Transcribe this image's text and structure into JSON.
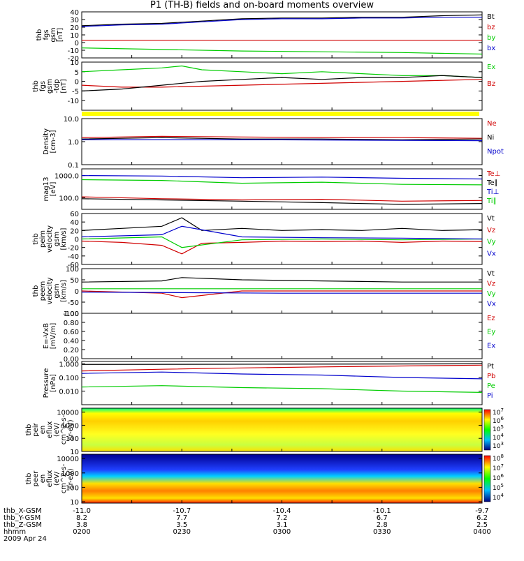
{
  "title": "P1 (TH-B) fields and on-board moments overview",
  "colors": {
    "black": "#000000",
    "red": "#d00000",
    "green": "#00cc00",
    "blue": "#0000cc",
    "yellow": "#ffff00"
  },
  "chart_data": [
    {
      "type": "line",
      "ylabel": [
        "thb",
        "fgs",
        "gsm",
        "[nT]"
      ],
      "ylim": [
        -20,
        40
      ],
      "yticks": [
        -20,
        -10,
        0,
        10,
        20,
        30,
        40
      ],
      "series": [
        {
          "name": "Bt",
          "color": "#000000",
          "x": [
            0,
            0.1,
            0.2,
            0.3,
            0.4,
            0.5,
            0.6,
            0.7,
            0.8,
            0.9,
            1.0
          ],
          "values": [
            22,
            24,
            25,
            28,
            31,
            32,
            32,
            33,
            33,
            35,
            36
          ]
        },
        {
          "name": "bz",
          "color": "#d00000",
          "x": [
            0,
            0.5,
            1.0
          ],
          "values": [
            3,
            3,
            3
          ]
        },
        {
          "name": "by",
          "color": "#00cc00",
          "x": [
            0,
            0.2,
            0.4,
            0.6,
            0.8,
            1.0
          ],
          "values": [
            -7,
            -9,
            -11,
            -12,
            -13,
            -15
          ]
        },
        {
          "name": "bx",
          "color": "#0000cc",
          "x": [
            0,
            0.1,
            0.2,
            0.3,
            0.4,
            0.5,
            0.6,
            0.7,
            0.8,
            0.9,
            1.0
          ],
          "values": [
            21,
            23,
            24,
            27,
            30,
            31,
            31,
            32,
            32,
            33,
            33
          ]
        }
      ]
    },
    {
      "type": "line",
      "ylabel": [
        "thb",
        "fgs",
        "gsm",
        "-tdp",
        "[nT]"
      ],
      "ylim": [
        -15,
        10
      ],
      "yticks": [
        -10,
        -5,
        0,
        5,
        10
      ],
      "series": [
        {
          "name": "Ex",
          "color": "#00cc00",
          "x": [
            0,
            0.1,
            0.2,
            0.25,
            0.3,
            0.4,
            0.5,
            0.6,
            0.7,
            0.8,
            0.9,
            1.0
          ],
          "values": [
            5,
            6,
            7,
            8,
            6,
            5,
            4,
            5,
            4,
            3,
            3,
            2
          ]
        },
        {
          "name": "Bz",
          "color": "#d00000",
          "x": [
            0,
            0.1,
            0.2,
            0.4,
            0.6,
            0.8,
            1.0
          ],
          "values": [
            -2,
            -3,
            -3,
            -2,
            -1,
            0,
            1
          ]
        },
        {
          "name": "",
          "color": "#000000",
          "x": [
            0,
            0.1,
            0.2,
            0.3,
            0.4,
            0.5,
            0.6,
            0.7,
            0.8,
            0.9,
            1.0
          ],
          "values": [
            -5,
            -4,
            -2,
            0,
            1,
            2,
            1,
            2,
            2,
            3,
            2
          ]
        }
      ]
    },
    {
      "type": "line",
      "ylabel": [
        "Density",
        "[cm-3]"
      ],
      "yscale": "log",
      "ylim": [
        0.1,
        10
      ],
      "yticks": [
        0.1,
        1.0,
        10.0
      ],
      "series": [
        {
          "name": "Ne",
          "color": "#d00000",
          "x": [
            0,
            0.2,
            0.4,
            0.6,
            0.8,
            1.0
          ],
          "values": [
            1.5,
            1.7,
            1.6,
            1.5,
            1.5,
            1.4
          ]
        },
        {
          "name": "Ni",
          "color": "#000000",
          "x": [
            0,
            0.2,
            0.4,
            0.6,
            0.8,
            1.0
          ],
          "values": [
            1.3,
            1.5,
            1.3,
            1.3,
            1.2,
            1.3
          ]
        },
        {
          "name": "Npot",
          "color": "#0000cc",
          "x": [
            0,
            0.5,
            1.0
          ],
          "values": [
            1.2,
            1.2,
            1.1
          ]
        }
      ]
    },
    {
      "type": "line",
      "ylabel": [
        "mag13",
        "[eV]"
      ],
      "yscale": "log",
      "ylim": [
        30,
        2000
      ],
      "yticks": [
        100,
        1000
      ],
      "series": [
        {
          "name": "Te⊥",
          "color": "#d00000",
          "x": [
            0,
            0.2,
            0.4,
            0.6,
            0.8,
            1.0
          ],
          "values": [
            110,
            90,
            80,
            85,
            70,
            75
          ]
        },
        {
          "name": "Te∥",
          "color": "#000000",
          "x": [
            0,
            0.2,
            0.4,
            0.6,
            0.8,
            1.0
          ],
          "values": [
            90,
            80,
            70,
            60,
            50,
            55
          ]
        },
        {
          "name": "Ti⊥",
          "color": "#0000cc",
          "x": [
            0,
            0.2,
            0.4,
            0.6,
            0.8,
            1.0
          ],
          "values": [
            1000,
            950,
            800,
            850,
            750,
            700
          ]
        },
        {
          "name": "Ti∥",
          "color": "#00cc00",
          "x": [
            0,
            0.2,
            0.4,
            0.6,
            0.8,
            1.0
          ],
          "values": [
            650,
            600,
            450,
            500,
            400,
            380
          ]
        }
      ]
    },
    {
      "type": "line",
      "ylabel": [
        "thb",
        "peim",
        "velocity",
        "gsm",
        "[km/s]"
      ],
      "ylim": [
        -60,
        60
      ],
      "yticks": [
        -60,
        -40,
        -20,
        0,
        20,
        40,
        60
      ],
      "series": [
        {
          "name": "Vt",
          "color": "#000000",
          "x": [
            0,
            0.1,
            0.2,
            0.25,
            0.3,
            0.4,
            0.5,
            0.6,
            0.7,
            0.8,
            0.9,
            1.0
          ],
          "values": [
            20,
            25,
            30,
            50,
            20,
            25,
            20,
            22,
            20,
            25,
            20,
            22
          ]
        },
        {
          "name": "Vz",
          "color": "#d00000",
          "x": [
            0,
            0.1,
            0.2,
            0.25,
            0.3,
            0.4,
            0.5,
            0.6,
            0.7,
            0.8,
            0.9,
            1.0
          ],
          "values": [
            -5,
            -8,
            -15,
            -35,
            -10,
            -8,
            -5,
            -6,
            -5,
            -8,
            -5,
            -6
          ]
        },
        {
          "name": "Vy",
          "color": "#00cc00",
          "x": [
            0,
            0.2,
            0.25,
            0.4,
            0.6,
            0.8,
            1.0
          ],
          "values": [
            0,
            5,
            -20,
            -2,
            0,
            -2,
            0
          ]
        },
        {
          "name": "Vx",
          "color": "#0000cc",
          "x": [
            0,
            0.2,
            0.25,
            0.4,
            0.6,
            0.8,
            1.0
          ],
          "values": [
            5,
            10,
            30,
            5,
            3,
            2,
            0
          ]
        }
      ]
    },
    {
      "type": "line",
      "ylabel": [
        "thb",
        "peem",
        "velocity",
        "gsm",
        "[km/s]"
      ],
      "ylim": [
        -100,
        100
      ],
      "yticks": [
        -100,
        -50,
        0,
        50,
        100
      ],
      "series": [
        {
          "name": "Vt",
          "color": "#000000",
          "x": [
            0,
            0.2,
            0.25,
            0.4,
            0.6,
            0.8,
            1.0
          ],
          "values": [
            40,
            45,
            60,
            50,
            45,
            40,
            40
          ]
        },
        {
          "name": "Vz",
          "color": "#d00000",
          "x": [
            0,
            0.2,
            0.25,
            0.4,
            0.6,
            0.8,
            1.0
          ],
          "values": [
            0,
            -10,
            -30,
            0,
            0,
            0,
            0
          ]
        },
        {
          "name": "Vy",
          "color": "#00cc00",
          "x": [
            0,
            0.5,
            1.0
          ],
          "values": [
            10,
            10,
            10
          ]
        },
        {
          "name": "Vx",
          "color": "#0000cc",
          "x": [
            0,
            0.5,
            1.0
          ],
          "values": [
            -5,
            -10,
            -10
          ]
        }
      ]
    },
    {
      "type": "line",
      "ylabel": [
        "E=-VxB",
        "[mV/m]"
      ],
      "ylim": [
        0,
        1
      ],
      "yticks": [
        0,
        0.2,
        0.4,
        0.6,
        0.8,
        1.0
      ],
      "ytick_labels": [
        "0.00",
        "0.20",
        "0.40",
        "0.60",
        "0.80",
        "1.00"
      ],
      "series": [
        {
          "name": "Ez",
          "color": "#d00000",
          "x": [],
          "values": []
        },
        {
          "name": "Ey",
          "color": "#00cc00",
          "x": [],
          "values": []
        },
        {
          "name": "Ex",
          "color": "#0000cc",
          "x": [],
          "values": []
        }
      ]
    },
    {
      "type": "line",
      "ylabel": [
        "Pressure",
        "[nPa]"
      ],
      "yscale": "log",
      "ylim": [
        0.001,
        1.5
      ],
      "yticks": [
        0.01,
        0.1,
        1.0
      ],
      "ytick_labels": [
        "0.010",
        "0.100",
        "1.000"
      ],
      "series": [
        {
          "name": "Pt",
          "color": "#000000",
          "x": [
            0,
            0.5,
            1.0
          ],
          "values": [
            0.9,
            0.95,
            1.0
          ]
        },
        {
          "name": "Pb",
          "color": "#d00000",
          "x": [
            0,
            0.2,
            0.4,
            0.6,
            0.8,
            1.0
          ],
          "values": [
            0.3,
            0.4,
            0.5,
            0.6,
            0.7,
            0.8
          ]
        },
        {
          "name": "Pe",
          "color": "#00cc00",
          "x": [
            0,
            0.2,
            0.4,
            0.6,
            0.8,
            1.0
          ],
          "values": [
            0.02,
            0.025,
            0.018,
            0.015,
            0.01,
            0.008
          ]
        },
        {
          "name": "Pi",
          "color": "#0000cc",
          "x": [
            0,
            0.2,
            0.4,
            0.6,
            0.8,
            1.0
          ],
          "values": [
            0.2,
            0.25,
            0.18,
            0.15,
            0.1,
            0.08
          ]
        }
      ]
    },
    {
      "type": "heatmap",
      "ylabel": [
        "thb",
        "peir",
        "en",
        "eflux",
        "(eV/",
        "cm^2-s-",
        "sr-eV)"
      ],
      "yscale": "log",
      "ylim": [
        10,
        20000
      ],
      "yticks": [
        10,
        100,
        1000,
        10000
      ],
      "ytick_labels": [
        "10",
        "100",
        "1000",
        "10000"
      ],
      "colorbar": [
        "10^7",
        "10^6",
        "10^5",
        "10^4",
        "10^3"
      ]
    },
    {
      "type": "heatmap",
      "ylabel": [
        "thb",
        "peer",
        "en",
        "eflux",
        "(eV/",
        "cm^2-s-",
        "sr-eV)"
      ],
      "yscale": "log",
      "ylim": [
        8,
        20000
      ],
      "yticks": [
        10,
        100,
        1000,
        10000
      ],
      "ytick_labels": [
        "10",
        "100",
        "1000",
        "10000"
      ],
      "colorbar": [
        "10^8",
        "10^7",
        "10^6",
        "10^5",
        "10^4"
      ]
    }
  ],
  "x_axis": {
    "rows": [
      {
        "label": "thb_X-GSM",
        "values": [
          "-11.0",
          "-10.7",
          "-10.4",
          "-10.1",
          "-9.7"
        ]
      },
      {
        "label": "thb_Y-GSM",
        "values": [
          "8.2",
          "7.7",
          "7.2",
          "6.7",
          "6.2"
        ]
      },
      {
        "label": "thb_Z-GSM",
        "values": [
          "3.8",
          "3.5",
          "3.1",
          "2.8",
          "2.5"
        ]
      },
      {
        "label": "hhmm",
        "values": [
          "0200",
          "0230",
          "0300",
          "0330",
          "0400"
        ]
      }
    ],
    "date": "2009 Apr 24"
  }
}
